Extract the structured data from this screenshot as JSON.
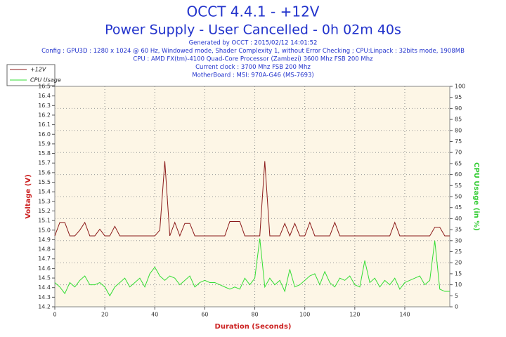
{
  "chart_data": {
    "type": "line",
    "title": "OCCT 4.4.1 - +12V",
    "subtitle": "Power Supply - User Cancelled - 0h 02m 40s",
    "info": [
      "Generated by OCCT : 2015/02/12 14:01:52",
      "Config : GPU3D : 1280 x 1024 @ 60 Hz, Windowed mode, Shader Complexity 1, without Error Checking ; CPU:Linpack : 32bits mode, 1908MB",
      "CPU : AMD FX(tm)-4100 Quad-Core Processor (Zambezi) 3600 Mhz FSB 200 Mhz",
      "Current clock : 3700 Mhz FSB 200 Mhz",
      "MotherBoard : MSI: 970A-G46 (MS-7693)"
    ],
    "xlabel": "Duration (Seconds)",
    "ylabel": "Voltage (V)",
    "y2label": "CPU Usage (in %)",
    "x": [
      0,
      2,
      4,
      6,
      8,
      10,
      12,
      14,
      16,
      18,
      20,
      22,
      24,
      26,
      28,
      30,
      32,
      34,
      36,
      38,
      40,
      42,
      44,
      46,
      48,
      50,
      52,
      54,
      56,
      58,
      60,
      62,
      64,
      66,
      68,
      70,
      72,
      74,
      76,
      78,
      80,
      82,
      84,
      86,
      88,
      90,
      92,
      94,
      96,
      98,
      100,
      102,
      104,
      106,
      108,
      110,
      112,
      114,
      116,
      118,
      120,
      122,
      124,
      126,
      128,
      130,
      132,
      134,
      136,
      138,
      140,
      142,
      144,
      146,
      148,
      150,
      152,
      154,
      156,
      158
    ],
    "series": [
      {
        "name": "+12V",
        "color": "#8b1a1a",
        "values": [
          14.94,
          15.08,
          15.08,
          14.94,
          14.94,
          15.0,
          15.08,
          14.94,
          14.94,
          15.01,
          14.94,
          14.94,
          15.04,
          14.94,
          14.94,
          14.94,
          14.94,
          14.94,
          14.94,
          14.94,
          14.94,
          15.0,
          15.72,
          14.94,
          15.08,
          14.94,
          15.07,
          15.07,
          14.94,
          14.94,
          14.94,
          14.94,
          14.94,
          14.94,
          14.94,
          15.09,
          15.09,
          15.09,
          14.94,
          14.94,
          14.94,
          14.94,
          15.72,
          14.94,
          14.94,
          14.94,
          15.07,
          14.94,
          15.07,
          14.94,
          14.94,
          15.08,
          14.94,
          14.94,
          14.94,
          14.94,
          15.08,
          14.94,
          14.94,
          14.94,
          14.94,
          14.94,
          14.94,
          14.94,
          14.94,
          14.94,
          14.94,
          14.94,
          15.08,
          14.94,
          14.94,
          14.94,
          14.94,
          14.94,
          14.94,
          14.94,
          15.03,
          15.03,
          14.94,
          14.94
        ]
      },
      {
        "name": "CPU Usage",
        "color": "#33dd33",
        "axis": "y2",
        "values": [
          11,
          9,
          6,
          11,
          9,
          12,
          14,
          10,
          10,
          11,
          9,
          5,
          9,
          11,
          13,
          9,
          11,
          13,
          9,
          15,
          18,
          14,
          12,
          14,
          13,
          10,
          12,
          14,
          9,
          11,
          12,
          11,
          11,
          10,
          9,
          8,
          9,
          8,
          13,
          10,
          13,
          31,
          9,
          13,
          10,
          12,
          7,
          17,
          9,
          10,
          12,
          14,
          15,
          10,
          16,
          11,
          9,
          13,
          12,
          14,
          10,
          9,
          21,
          11,
          13,
          9,
          12,
          10,
          13,
          8,
          11,
          12,
          13,
          14,
          10,
          12,
          30,
          8,
          7,
          7
        ]
      }
    ],
    "xlim": [
      0,
      158
    ],
    "xticks": [
      0,
      20,
      40,
      60,
      80,
      100,
      120,
      140
    ],
    "ylim": [
      14.2,
      16.5
    ],
    "yticks": [
      14.2,
      14.3,
      14.4,
      14.5,
      14.6,
      14.7,
      14.8,
      14.9,
      {
        "value": 15,
        "label": "15.0"
      },
      15.1,
      15.2,
      15.3,
      15.4,
      15.5,
      15.6,
      15.7,
      15.8,
      15.9,
      {
        "value": 16,
        "label": "16.0"
      },
      16.1,
      16.2,
      16.3,
      16.4,
      16.5
    ],
    "y2lim": [
      0,
      100
    ],
    "y2ticks": [
      0,
      5,
      10,
      15,
      20,
      25,
      30,
      35,
      40,
      45,
      50,
      55,
      60,
      65,
      70,
      75,
      80,
      85,
      90,
      95,
      100
    ],
    "grid": true,
    "legend": "upper left"
  }
}
